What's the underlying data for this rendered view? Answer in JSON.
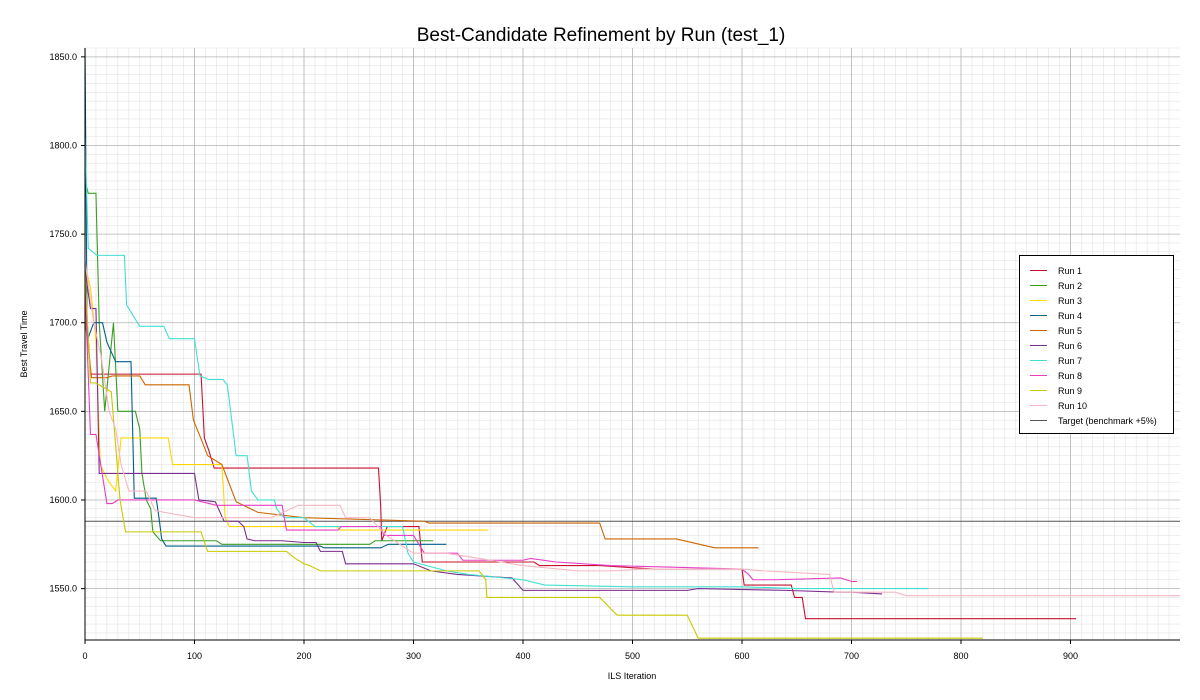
{
  "chart_data": {
    "type": "line",
    "title": "Best-Candidate Refinement by Run (test_1)",
    "xlabel": "ILS Iteration",
    "ylabel": "Best Travel Time",
    "xlim": [
      0,
      1000
    ],
    "ylim": [
      1521,
      1855
    ],
    "xticks": [
      0,
      100,
      200,
      300,
      400,
      500,
      600,
      700,
      800,
      900
    ],
    "yticks": [
      1550.0,
      1600.0,
      1650.0,
      1700.0,
      1750.0,
      1800.0,
      1850.0
    ],
    "grid": true,
    "legend_position": "right",
    "target": {
      "name": "Target (benchmark +5%)",
      "value": 1588,
      "color": "#555555"
    },
    "series": [
      {
        "name": "Run 1",
        "color": "#c8102e",
        "points": [
          [
            0,
            1720
          ],
          [
            5,
            1671
          ],
          [
            106,
            1671
          ],
          [
            109,
            1635
          ],
          [
            113,
            1628
          ],
          [
            118,
            1618
          ],
          [
            245,
            1618
          ],
          [
            247,
            1618
          ],
          [
            268,
            1618
          ],
          [
            270,
            1597
          ],
          [
            271,
            1577
          ],
          [
            276,
            1585
          ],
          [
            305,
            1585
          ],
          [
            308,
            1565
          ],
          [
            410,
            1565
          ],
          [
            415,
            1563
          ],
          [
            470,
            1563
          ],
          [
            520,
            1561
          ],
          [
            600,
            1561
          ],
          [
            602,
            1552
          ],
          [
            645,
            1552
          ],
          [
            648,
            1545
          ],
          [
            655,
            1545
          ],
          [
            658,
            1533
          ],
          [
            905,
            1533
          ]
        ]
      },
      {
        "name": "Run 2",
        "color": "#3a9d23",
        "points": [
          [
            0,
            1780
          ],
          [
            3,
            1773
          ],
          [
            10,
            1773
          ],
          [
            13,
            1700
          ],
          [
            18,
            1650
          ],
          [
            26,
            1700
          ],
          [
            30,
            1650
          ],
          [
            46,
            1650
          ],
          [
            50,
            1640
          ],
          [
            52,
            1615
          ],
          [
            56,
            1600
          ],
          [
            60,
            1595
          ],
          [
            62,
            1582
          ],
          [
            69,
            1577
          ],
          [
            120,
            1577
          ],
          [
            125,
            1575
          ],
          [
            260,
            1575
          ],
          [
            265,
            1577
          ],
          [
            318,
            1577
          ]
        ]
      },
      {
        "name": "Run 3",
        "color": "#ffd700",
        "points": [
          [
            0,
            1733
          ],
          [
            5,
            1720
          ],
          [
            10,
            1690
          ],
          [
            14,
            1620
          ],
          [
            20,
            1612
          ],
          [
            28,
            1605
          ],
          [
            33,
            1635
          ],
          [
            76,
            1635
          ],
          [
            80,
            1620
          ],
          [
            125,
            1620
          ],
          [
            128,
            1590
          ],
          [
            132,
            1585
          ],
          [
            230,
            1585
          ],
          [
            233,
            1583
          ],
          [
            368,
            1583
          ]
        ]
      },
      {
        "name": "Run 4",
        "color": "#005f87",
        "points": [
          [
            0,
            1855
          ],
          [
            2,
            1690
          ],
          [
            8,
            1700
          ],
          [
            16,
            1700
          ],
          [
            20,
            1689
          ],
          [
            28,
            1678
          ],
          [
            42,
            1678
          ],
          [
            45,
            1601
          ],
          [
            65,
            1601
          ],
          [
            68,
            1588
          ],
          [
            70,
            1578
          ],
          [
            74,
            1574
          ],
          [
            215,
            1574
          ],
          [
            218,
            1573
          ],
          [
            270,
            1573
          ],
          [
            277,
            1575
          ],
          [
            330,
            1575
          ]
        ]
      },
      {
        "name": "Run 5",
        "color": "#cc6600",
        "points": [
          [
            0,
            1702
          ],
          [
            6,
            1669
          ],
          [
            20,
            1669
          ],
          [
            25,
            1670
          ],
          [
            50,
            1670
          ],
          [
            55,
            1665
          ],
          [
            95,
            1665
          ],
          [
            99,
            1645
          ],
          [
            105,
            1636
          ],
          [
            112,
            1625
          ],
          [
            125,
            1620
          ],
          [
            138,
            1599
          ],
          [
            158,
            1593
          ],
          [
            200,
            1590
          ],
          [
            310,
            1588
          ],
          [
            314,
            1587
          ],
          [
            470,
            1587
          ],
          [
            475,
            1578
          ],
          [
            530,
            1578
          ],
          [
            540,
            1578
          ],
          [
            575,
            1573
          ],
          [
            610,
            1573
          ],
          [
            615,
            1573
          ]
        ]
      },
      {
        "name": "Run 6",
        "color": "#7b2d8e",
        "points": [
          [
            0,
            1730
          ],
          [
            5,
            1708
          ],
          [
            10,
            1708
          ],
          [
            13,
            1615
          ],
          [
            100,
            1615
          ],
          [
            104,
            1600
          ],
          [
            119,
            1599
          ],
          [
            127,
            1588
          ],
          [
            140,
            1588
          ],
          [
            145,
            1585
          ],
          [
            148,
            1578
          ],
          [
            155,
            1577
          ],
          [
            180,
            1577
          ],
          [
            200,
            1576
          ],
          [
            211,
            1576
          ],
          [
            215,
            1571
          ],
          [
            235,
            1571
          ],
          [
            238,
            1564
          ],
          [
            300,
            1564
          ],
          [
            316,
            1560
          ],
          [
            340,
            1558
          ],
          [
            390,
            1556
          ],
          [
            400,
            1549
          ],
          [
            470,
            1549
          ],
          [
            550,
            1549
          ],
          [
            560,
            1550
          ],
          [
            640,
            1549
          ],
          [
            690,
            1548
          ],
          [
            700,
            1548
          ],
          [
            728,
            1547
          ]
        ]
      },
      {
        "name": "Run 7",
        "color": "#40e0d0",
        "points": [
          [
            0,
            1805
          ],
          [
            3,
            1742
          ],
          [
            11,
            1738
          ],
          [
            36,
            1738
          ],
          [
            38,
            1710
          ],
          [
            50,
            1698
          ],
          [
            72,
            1698
          ],
          [
            77,
            1691
          ],
          [
            100,
            1691
          ],
          [
            105,
            1670
          ],
          [
            113,
            1668
          ],
          [
            126,
            1668
          ],
          [
            130,
            1665
          ],
          [
            138,
            1625
          ],
          [
            148,
            1625
          ],
          [
            152,
            1605
          ],
          [
            158,
            1600
          ],
          [
            173,
            1600
          ],
          [
            175,
            1595
          ],
          [
            182,
            1590
          ],
          [
            200,
            1590
          ],
          [
            210,
            1585
          ],
          [
            290,
            1585
          ],
          [
            295,
            1570
          ],
          [
            300,
            1565
          ],
          [
            330,
            1560
          ],
          [
            350,
            1558
          ],
          [
            400,
            1555
          ],
          [
            420,
            1552
          ],
          [
            500,
            1551
          ],
          [
            600,
            1551
          ],
          [
            650,
            1550
          ],
          [
            770,
            1550
          ]
        ]
      },
      {
        "name": "Run 8",
        "color": "#e83ec5",
        "points": [
          [
            0,
            1720
          ],
          [
            5,
            1637
          ],
          [
            10,
            1637
          ],
          [
            20,
            1598
          ],
          [
            25,
            1598
          ],
          [
            30,
            1600
          ],
          [
            100,
            1600
          ],
          [
            120,
            1597
          ],
          [
            180,
            1597
          ],
          [
            184,
            1583
          ],
          [
            200,
            1583
          ],
          [
            231,
            1583
          ],
          [
            234,
            1585
          ],
          [
            270,
            1585
          ],
          [
            273,
            1580
          ],
          [
            300,
            1580
          ],
          [
            306,
            1574
          ],
          [
            310,
            1570
          ],
          [
            340,
            1570
          ],
          [
            345,
            1566
          ],
          [
            400,
            1566
          ],
          [
            407,
            1567
          ],
          [
            430,
            1565
          ],
          [
            480,
            1563
          ],
          [
            600,
            1561
          ],
          [
            606,
            1558
          ],
          [
            610,
            1555
          ],
          [
            630,
            1555
          ],
          [
            690,
            1556
          ],
          [
            700,
            1554
          ],
          [
            705,
            1554
          ]
        ]
      },
      {
        "name": "Run 9",
        "color": "#c9c900",
        "points": [
          [
            0,
            1730
          ],
          [
            5,
            1666
          ],
          [
            10,
            1666
          ],
          [
            24,
            1661
          ],
          [
            32,
            1600
          ],
          [
            37,
            1582
          ],
          [
            106,
            1582
          ],
          [
            112,
            1571
          ],
          [
            150,
            1571
          ],
          [
            184,
            1571
          ],
          [
            192,
            1567
          ],
          [
            200,
            1564
          ],
          [
            205,
            1563
          ],
          [
            215,
            1560
          ],
          [
            360,
            1560
          ],
          [
            366,
            1555
          ],
          [
            367,
            1545
          ],
          [
            370,
            1545
          ],
          [
            373,
            1545
          ],
          [
            470,
            1545
          ],
          [
            478,
            1540
          ],
          [
            486,
            1535
          ],
          [
            495,
            1535
          ],
          [
            550,
            1535
          ],
          [
            560,
            1522
          ],
          [
            820,
            1522
          ]
        ]
      },
      {
        "name": "Run 10",
        "color": "#f4b8c3",
        "points": [
          [
            0,
            1735
          ],
          [
            8,
            1700
          ],
          [
            15,
            1680
          ],
          [
            22,
            1650
          ],
          [
            28,
            1640
          ],
          [
            33,
            1620
          ],
          [
            40,
            1605
          ],
          [
            56,
            1605
          ],
          [
            64,
            1594
          ],
          [
            100,
            1590
          ],
          [
            170,
            1590
          ],
          [
            195,
            1597
          ],
          [
            233,
            1597
          ],
          [
            238,
            1590
          ],
          [
            260,
            1590
          ],
          [
            275,
            1580
          ],
          [
            300,
            1570
          ],
          [
            330,
            1570
          ],
          [
            360,
            1567
          ],
          [
            400,
            1563
          ],
          [
            450,
            1560
          ],
          [
            480,
            1560
          ],
          [
            510,
            1561
          ],
          [
            560,
            1561
          ],
          [
            600,
            1561
          ],
          [
            620,
            1560
          ],
          [
            680,
            1558
          ],
          [
            684,
            1548
          ],
          [
            740,
            1548
          ],
          [
            750,
            1546
          ],
          [
            1000,
            1546
          ]
        ]
      }
    ]
  }
}
